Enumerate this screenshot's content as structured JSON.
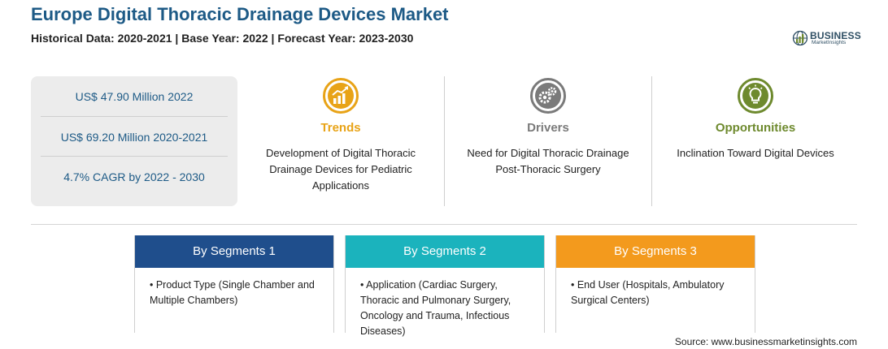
{
  "header": {
    "title": "Europe Digital Thoracic Drainage Devices Market",
    "subtitle": "Historical Data: 2020-2021 | Base Year: 2022 | Forecast Year: 2023-2030"
  },
  "logo": {
    "word": "BUSINESS",
    "sub": "MarketInsights"
  },
  "stats": [
    "US$ 47.90 Million 2022",
    "US$ 69.20 Million 2020-2021",
    "4.7% CAGR by 2022 - 2030"
  ],
  "columns": [
    {
      "heading": "Trends",
      "color": "#e8a317",
      "icon": "growth-chart-icon",
      "text": "Development of Digital Thoracic Drainage Devices for Pediatric Applications"
    },
    {
      "heading": "Drivers",
      "color": "#7a7a7a",
      "icon": "gears-icon",
      "text": "Need for Digital Thoracic Drainage Post-Thoracic Surgery"
    },
    {
      "heading": "Opportunities",
      "color": "#6e8a2e",
      "icon": "lightbulb-icon",
      "text": "Inclination Toward Digital Devices"
    }
  ],
  "segments": [
    {
      "heading": "By Segments 1",
      "color": "#1f4e8c",
      "item": "• Product Type (Single Chamber and Multiple Chambers)"
    },
    {
      "heading": "By Segments 2",
      "color": "#1bb3bd",
      "item": "• Application (Cardiac Surgery, Thoracic and Pulmonary Surgery, Oncology and Trauma, Infectious Diseases)"
    },
    {
      "heading": "By Segments 3",
      "color": "#f39a1d",
      "item": "• End User (Hospitals, Ambulatory Surgical Centers)"
    }
  ],
  "source": "Source: www.businessmarketinsights.com"
}
